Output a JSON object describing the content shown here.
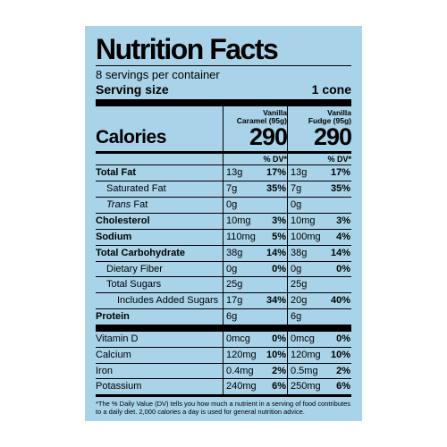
{
  "title": "Nutrition Facts",
  "servings_per_container": "8 servings per container",
  "serving_size_label": "Serving size",
  "serving_size_value": "1 cone",
  "calories_label": "Calories",
  "dv_header": "% DV*",
  "products": [
    {
      "name_line1": "Vanilla",
      "name_line2": "Caramel (95g)",
      "calories": "290"
    },
    {
      "name_line1": "Vanilla",
      "name_line2": "Fudge (95g)",
      "calories": "290"
    }
  ],
  "nutrients_main": [
    {
      "label": "Total Fat",
      "bold": true,
      "indent": 0,
      "vals": [
        {
          "amt": "13g",
          "pct": "17%"
        },
        {
          "amt": "13g",
          "pct": "17%"
        }
      ]
    },
    {
      "label": "Saturated Fat",
      "bold": false,
      "indent": 1,
      "vals": [
        {
          "amt": "7g",
          "pct": "35%"
        },
        {
          "amt": "7g",
          "pct": "35%"
        }
      ]
    },
    {
      "label": "Trans Fat",
      "bold": false,
      "indent": 1,
      "italic_prefix": "Trans",
      "suffix": " Fat",
      "vals": [
        {
          "amt": "0g",
          "pct": ""
        },
        {
          "amt": "0g",
          "pct": ""
        }
      ]
    },
    {
      "label": "Cholesterol",
      "bold": true,
      "indent": 0,
      "vals": [
        {
          "amt": "10mg",
          "pct": "3%"
        },
        {
          "amt": "10mg",
          "pct": "3%"
        }
      ]
    },
    {
      "label": "Sodium",
      "bold": true,
      "indent": 0,
      "vals": [
        {
          "amt": "110mg",
          "pct": "5%"
        },
        {
          "amt": "100mg",
          "pct": "4%"
        }
      ]
    },
    {
      "label": "Total Carbohydrate",
      "bold": true,
      "indent": 0,
      "vals": [
        {
          "amt": "38g",
          "pct": "14%"
        },
        {
          "amt": "38g",
          "pct": "14%"
        }
      ]
    },
    {
      "label": "Dietary Fiber",
      "bold": false,
      "indent": 1,
      "vals": [
        {
          "amt": "0g",
          "pct": "0%"
        },
        {
          "amt": "0g",
          "pct": "0%"
        }
      ]
    },
    {
      "label": "Total Sugars",
      "bold": false,
      "indent": 1,
      "vals": [
        {
          "amt": "25g",
          "pct": ""
        },
        {
          "amt": "25g",
          "pct": ""
        }
      ]
    },
    {
      "label": "Includes Added Sugars",
      "bold": false,
      "indent": 2,
      "vals": [
        {
          "amt": "17g",
          "pct": "34%"
        },
        {
          "amt": "20g",
          "pct": "40%"
        }
      ]
    },
    {
      "label": "Protein",
      "bold": true,
      "indent": 0,
      "thick_after": true,
      "vals": [
        {
          "amt": "6g",
          "pct": ""
        },
        {
          "amt": "6g",
          "pct": ""
        }
      ]
    }
  ],
  "nutrients_vitamins": [
    {
      "label": "Vitamin D",
      "vals": [
        {
          "amt": "0mcg",
          "pct": "0%"
        },
        {
          "amt": "0mcg",
          "pct": "0%"
        }
      ]
    },
    {
      "label": "Calcium",
      "vals": [
        {
          "amt": "120mg",
          "pct": "10%"
        },
        {
          "amt": "120mg",
          "pct": "10%"
        }
      ]
    },
    {
      "label": "Iron",
      "vals": [
        {
          "amt": "0.4mg",
          "pct": "2%"
        },
        {
          "amt": "0.5mg",
          "pct": "2%"
        }
      ]
    },
    {
      "label": "Potassium",
      "mid_after": true,
      "vals": [
        {
          "amt": "240mg",
          "pct": "6%"
        },
        {
          "amt": "250mg",
          "pct": "6%"
        }
      ]
    }
  ],
  "footnote": "*The % Daily Value (DV) tells you how much a nutrient in a serving of food contributes to a daily diet. 2,000 calories a day is used for general nutrition advice.",
  "colors": {
    "panel_bg": "#a8d3e8",
    "text": "#000000"
  }
}
